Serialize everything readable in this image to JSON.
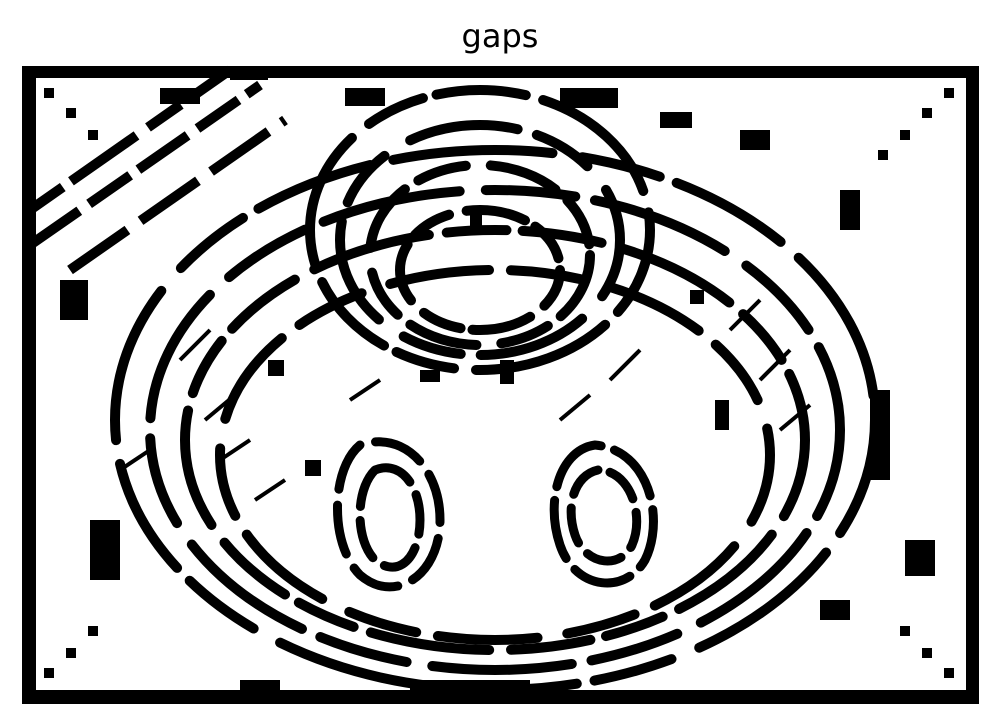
{
  "figure": {
    "title": "gaps"
  },
  "colors": {
    "foreground": "#000000",
    "background": "#ffffff"
  }
}
